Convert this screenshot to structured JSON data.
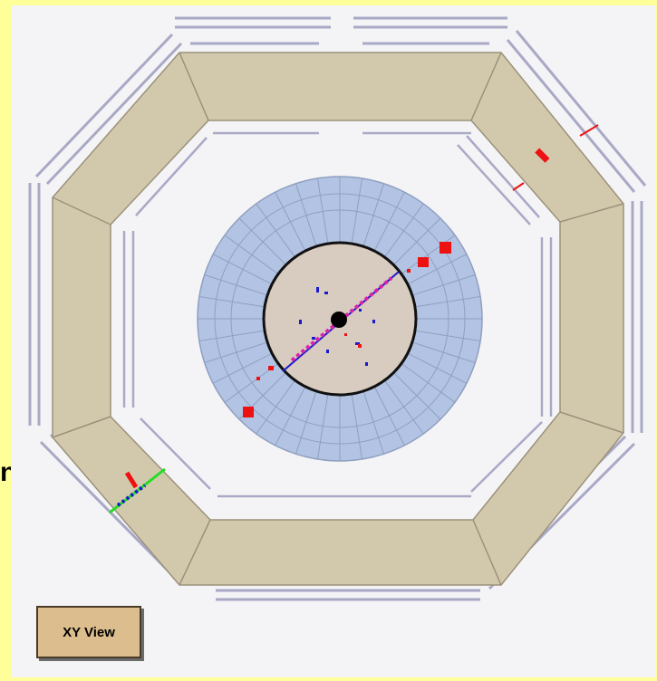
{
  "display": {
    "view_label": "XY View",
    "side_text": "n"
  },
  "colors": {
    "page_background": "#ffff99",
    "panel_background": "#f4f4f6",
    "calorimeter_barrel": "#d2c9ad",
    "calorimeter_edge": "#9a917a",
    "muon_chambers": "#a9a9c6",
    "em_calorimeter": "#b3c3e3",
    "inner_detector": "#d8cbbf",
    "track_color": "#1a1acc",
    "energy_deposit": "#ee1111",
    "muon_track": "#22dd22",
    "button_fill": "#dcbd8d"
  },
  "icons": {
    "detector": "octagonal-detector-cross-section"
  }
}
